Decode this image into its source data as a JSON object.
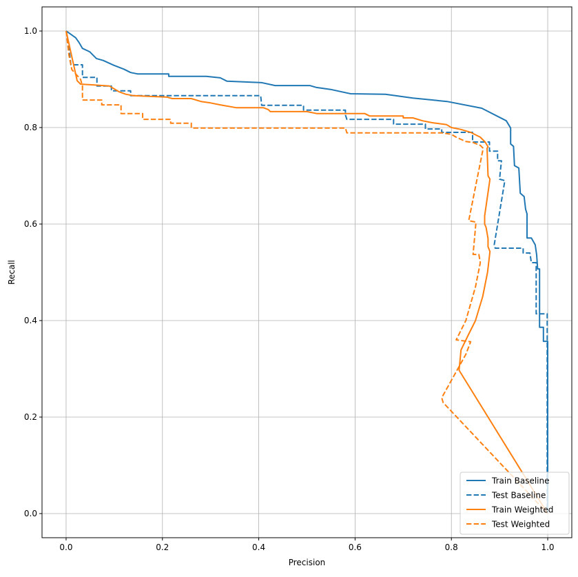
{
  "chart_data": {
    "type": "line",
    "title": "",
    "xlabel": "Precision",
    "ylabel": "Recall",
    "xlim": [
      -0.05,
      1.05
    ],
    "ylim": [
      -0.05,
      1.05
    ],
    "xticks": [
      "0.0",
      "0.2",
      "0.4",
      "0.6",
      "0.8",
      "1.0"
    ],
    "yticks": [
      "0.0",
      "0.2",
      "0.4",
      "0.6",
      "0.8",
      "1.0"
    ],
    "grid": true,
    "legend_position": "lower-right",
    "series": [
      {
        "name": "Train Baseline",
        "color": "#1f77b4",
        "style": "solid",
        "points": [
          [
            0,
            1
          ],
          [
            0.006,
            0.996
          ],
          [
            0.02,
            0.986
          ],
          [
            0.027,
            0.976
          ],
          [
            0.034,
            0.964
          ],
          [
            0.049,
            0.957
          ],
          [
            0.063,
            0.943
          ],
          [
            0.077,
            0.939
          ],
          [
            0.099,
            0.929
          ],
          [
            0.12,
            0.921
          ],
          [
            0.134,
            0.914
          ],
          [
            0.149,
            0.911
          ],
          [
            0.213,
            0.911
          ],
          [
            0.213,
            0.906
          ],
          [
            0.291,
            0.906
          ],
          [
            0.32,
            0.903
          ],
          [
            0.334,
            0.896
          ],
          [
            0.406,
            0.893
          ],
          [
            0.434,
            0.887
          ],
          [
            0.506,
            0.887
          ],
          [
            0.52,
            0.883
          ],
          [
            0.549,
            0.879
          ],
          [
            0.591,
            0.87
          ],
          [
            0.663,
            0.869
          ],
          [
            0.72,
            0.861
          ],
          [
            0.791,
            0.854
          ],
          [
            0.863,
            0.84
          ],
          [
            0.914,
            0.814
          ],
          [
            0.92,
            0.804
          ],
          [
            0.923,
            0.799
          ],
          [
            0.923,
            0.766
          ],
          [
            0.929,
            0.761
          ],
          [
            0.931,
            0.721
          ],
          [
            0.94,
            0.716
          ],
          [
            0.943,
            0.664
          ],
          [
            0.951,
            0.657
          ],
          [
            0.954,
            0.631
          ],
          [
            0.957,
            0.621
          ],
          [
            0.957,
            0.571
          ],
          [
            0.966,
            0.571
          ],
          [
            0.974,
            0.557
          ],
          [
            0.977,
            0.536
          ],
          [
            0.979,
            0.507
          ],
          [
            0.983,
            0.507
          ],
          [
            0.983,
            0.386
          ],
          [
            0.991,
            0.386
          ],
          [
            0.991,
            0.357
          ],
          [
            1.0,
            0.357
          ],
          [
            1.0,
            0
          ]
        ]
      },
      {
        "name": "Test Baseline",
        "color": "#1f77b4",
        "style": "dashed",
        "points": [
          [
            0,
            1
          ],
          [
            0.004,
            0.98
          ],
          [
            0.01,
            0.93
          ],
          [
            0.034,
            0.93
          ],
          [
            0.034,
            0.904
          ],
          [
            0.064,
            0.904
          ],
          [
            0.064,
            0.886
          ],
          [
            0.094,
            0.886
          ],
          [
            0.094,
            0.876
          ],
          [
            0.134,
            0.876
          ],
          [
            0.134,
            0.866
          ],
          [
            0.404,
            0.866
          ],
          [
            0.406,
            0.846
          ],
          [
            0.493,
            0.846
          ],
          [
            0.493,
            0.836
          ],
          [
            0.58,
            0.836
          ],
          [
            0.58,
            0.826
          ],
          [
            0.583,
            0.817
          ],
          [
            0.68,
            0.817
          ],
          [
            0.68,
            0.807
          ],
          [
            0.746,
            0.807
          ],
          [
            0.746,
            0.797
          ],
          [
            0.78,
            0.797
          ],
          [
            0.78,
            0.79
          ],
          [
            0.844,
            0.79
          ],
          [
            0.844,
            0.77
          ],
          [
            0.879,
            0.77
          ],
          [
            0.879,
            0.751
          ],
          [
            0.896,
            0.751
          ],
          [
            0.896,
            0.731
          ],
          [
            0.904,
            0.731
          ],
          [
            0.9,
            0.693
          ],
          [
            0.911,
            0.69
          ],
          [
            0.889,
            0.557
          ],
          [
            0.891,
            0.55
          ],
          [
            0.949,
            0.55
          ],
          [
            0.949,
            0.54
          ],
          [
            0.963,
            0.54
          ],
          [
            0.966,
            0.52
          ],
          [
            0.976,
            0.52
          ],
          [
            0.976,
            0.414
          ],
          [
            0.999,
            0.414
          ],
          [
            0.999,
            0
          ]
        ]
      },
      {
        "name": "Train Weighted",
        "color": "#ff7f0e",
        "style": "solid",
        "points": [
          [
            0,
            1
          ],
          [
            0.023,
            0.897
          ],
          [
            0.03,
            0.89
          ],
          [
            0.09,
            0.886
          ],
          [
            0.1,
            0.88
          ],
          [
            0.11,
            0.874
          ],
          [
            0.124,
            0.869
          ],
          [
            0.14,
            0.866
          ],
          [
            0.21,
            0.863
          ],
          [
            0.22,
            0.86
          ],
          [
            0.26,
            0.86
          ],
          [
            0.28,
            0.854
          ],
          [
            0.3,
            0.851
          ],
          [
            0.32,
            0.847
          ],
          [
            0.354,
            0.841
          ],
          [
            0.41,
            0.841
          ],
          [
            0.42,
            0.837
          ],
          [
            0.424,
            0.833
          ],
          [
            0.5,
            0.833
          ],
          [
            0.52,
            0.829
          ],
          [
            0.62,
            0.829
          ],
          [
            0.63,
            0.824
          ],
          [
            0.7,
            0.824
          ],
          [
            0.7,
            0.82
          ],
          [
            0.72,
            0.82
          ],
          [
            0.74,
            0.814
          ],
          [
            0.76,
            0.81
          ],
          [
            0.79,
            0.806
          ],
          [
            0.8,
            0.8
          ],
          [
            0.82,
            0.796
          ],
          [
            0.84,
            0.79
          ],
          [
            0.86,
            0.78
          ],
          [
            0.87,
            0.77
          ],
          [
            0.876,
            0.76
          ],
          [
            0.874,
            0.757
          ],
          [
            0.876,
            0.7
          ],
          [
            0.88,
            0.693
          ],
          [
            0.869,
            0.617
          ],
          [
            0.869,
            0.6
          ],
          [
            0.872,
            0.593
          ],
          [
            0.876,
            0.57
          ],
          [
            0.876,
            0.553
          ],
          [
            0.88,
            0.543
          ],
          [
            0.875,
            0.5
          ],
          [
            0.865,
            0.45
          ],
          [
            0.85,
            0.4
          ],
          [
            0.835,
            0.37
          ],
          [
            0.82,
            0.339
          ],
          [
            0.816,
            0.297
          ],
          [
            1.0,
            0
          ]
        ]
      },
      {
        "name": "Test Weighted",
        "color": "#ff7f0e",
        "style": "dashed",
        "points": [
          [
            0,
            1
          ],
          [
            0.006,
            0.95
          ],
          [
            0.012,
            0.92
          ],
          [
            0.03,
            0.9
          ],
          [
            0.034,
            0.886
          ],
          [
            0.034,
            0.857
          ],
          [
            0.074,
            0.857
          ],
          [
            0.074,
            0.847
          ],
          [
            0.114,
            0.847
          ],
          [
            0.114,
            0.829
          ],
          [
            0.159,
            0.829
          ],
          [
            0.159,
            0.817
          ],
          [
            0.217,
            0.817
          ],
          [
            0.217,
            0.809
          ],
          [
            0.26,
            0.809
          ],
          [
            0.26,
            0.799
          ],
          [
            0.58,
            0.799
          ],
          [
            0.583,
            0.789
          ],
          [
            0.78,
            0.789
          ],
          [
            0.8,
            0.786
          ],
          [
            0.81,
            0.78
          ],
          [
            0.83,
            0.771
          ],
          [
            0.845,
            0.769
          ],
          [
            0.86,
            0.763
          ],
          [
            0.866,
            0.757
          ],
          [
            0.836,
            0.607
          ],
          [
            0.851,
            0.604
          ],
          [
            0.845,
            0.537
          ],
          [
            0.857,
            0.537
          ],
          [
            0.86,
            0.52
          ],
          [
            0.85,
            0.47
          ],
          [
            0.83,
            0.4
          ],
          [
            0.81,
            0.36
          ],
          [
            0.84,
            0.356
          ],
          [
            0.83,
            0.33
          ],
          [
            0.78,
            0.24
          ],
          [
            0.783,
            0.23
          ],
          [
            1.0,
            0
          ]
        ]
      }
    ]
  }
}
